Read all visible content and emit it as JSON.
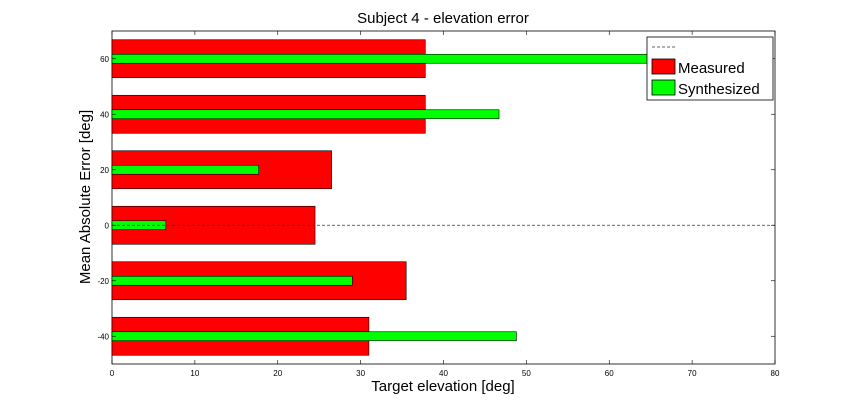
{
  "chart_data": {
    "type": "bar",
    "orientation": "horizontal",
    "title": "Subject 4 - elevation error",
    "xlabel": "Target elevation [deg]",
    "ylabel": "Mean Absolute Error [deg]",
    "xlim": [
      0,
      80
    ],
    "xticks": [
      0,
      10,
      20,
      30,
      40,
      50,
      60,
      70,
      80
    ],
    "categories": [
      -40,
      -20,
      0,
      20,
      40,
      60
    ],
    "reference_line": {
      "name": "",
      "value": 0,
      "style": "dashed"
    },
    "series": [
      {
        "name": "Measured",
        "color": "#ff0000",
        "values": [
          31,
          35.5,
          24.5,
          26.5,
          37.8,
          37.8
        ]
      },
      {
        "name": "Synthesized",
        "color": "#00ff00",
        "values": [
          48.8,
          29,
          6.5,
          17.7,
          46.7,
          66
        ]
      }
    ],
    "legend": {
      "position": "top-right",
      "entries": [
        "",
        "Measured",
        "Synthesized"
      ]
    }
  }
}
